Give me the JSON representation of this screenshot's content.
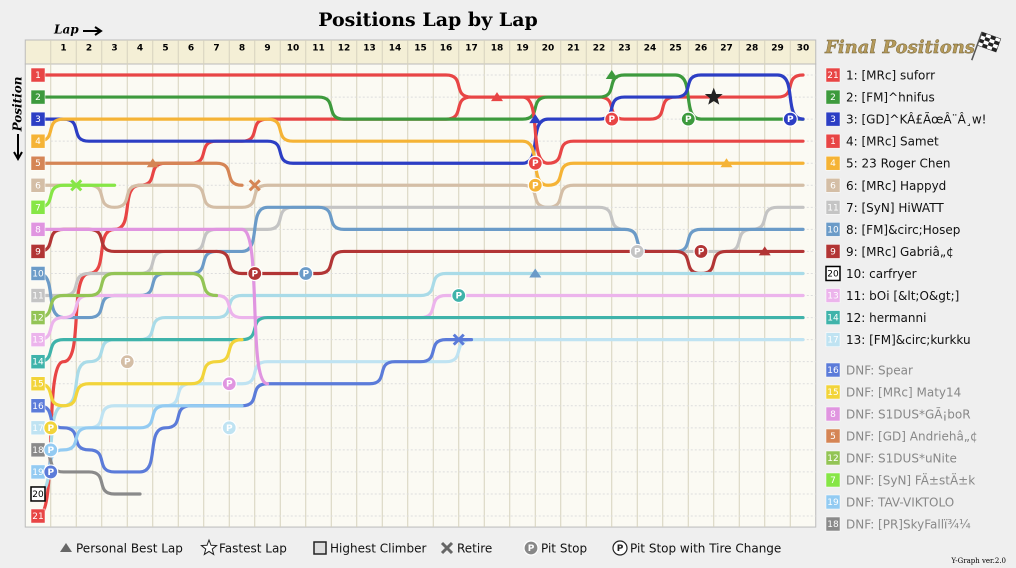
{
  "chart_data": {
    "type": "lapchart",
    "title": "Positions Lap by Lap",
    "x_label": "Lap",
    "y_label": "Position",
    "panel_title": "Final Positions",
    "footer": "Y-Graph ver.2.0",
    "x": [
      0,
      1,
      2,
      3,
      4,
      5,
      6,
      7,
      8,
      9,
      10,
      11,
      12,
      13,
      14,
      15,
      16,
      17,
      18,
      19,
      20,
      21,
      22,
      23,
      24,
      25,
      26,
      27,
      28,
      29,
      30
    ],
    "xlim": [
      -0.5,
      30.5
    ],
    "xticks": [
      1,
      2,
      3,
      4,
      5,
      6,
      7,
      8,
      9,
      10,
      11,
      12,
      13,
      14,
      15,
      16,
      17,
      18,
      19,
      20,
      21,
      22,
      23,
      24,
      25,
      26,
      27,
      28,
      29,
      30
    ],
    "ylim": [
      0.5,
      21.5
    ],
    "yticks": [
      1,
      2,
      3,
      4,
      5,
      6,
      7,
      8,
      9,
      10,
      11,
      12,
      13,
      14,
      15,
      16,
      17,
      18,
      19,
      20,
      21
    ],
    "grid": true,
    "series": [
      {
        "name": "1: [MRc] suforr",
        "color": "#e84545",
        "values": [
          21,
          14,
          10,
          8,
          6,
          5,
          5,
          4,
          4,
          3,
          3,
          3,
          3,
          3,
          3,
          3,
          3,
          2,
          2,
          2,
          2,
          2,
          2,
          3,
          3,
          2,
          2,
          2,
          2,
          2,
          1
        ]
      },
      {
        "name": "2: [FM]^hnifus",
        "color": "#3d9a3d",
        "values": [
          2,
          2,
          2,
          2,
          2,
          2,
          2,
          2,
          2,
          2,
          2,
          2,
          3,
          3,
          3,
          3,
          3,
          3,
          3,
          3,
          2,
          2,
          2,
          1,
          1,
          1,
          3,
          3,
          3,
          3,
          3
        ]
      },
      {
        "name": "3: [GD]^KÂ£ÃœÂ¨Â¸w!",
        "color": "#2c3ec4",
        "values": [
          3,
          3,
          4,
          4,
          4,
          4,
          4,
          4,
          4,
          4,
          5,
          5,
          5,
          5,
          5,
          5,
          5,
          5,
          5,
          5,
          3,
          3,
          3,
          2,
          2,
          2,
          1,
          1,
          1,
          1,
          3
        ]
      },
      {
        "name": "4: [MRc] Samet",
        "color": "#e84545",
        "values": [
          1,
          1,
          1,
          1,
          1,
          1,
          1,
          1,
          1,
          1,
          1,
          1,
          1,
          1,
          1,
          1,
          1,
          2,
          2,
          2,
          5,
          4,
          4,
          4,
          4,
          4,
          4,
          4,
          4,
          4,
          4
        ]
      },
      {
        "name": "5: 23 Roger Chen",
        "color": "#f5b335",
        "values": [
          4,
          3,
          3,
          3,
          3,
          3,
          3,
          3,
          3,
          3,
          4,
          4,
          4,
          4,
          4,
          4,
          4,
          4,
          4,
          4,
          6,
          5,
          5,
          5,
          5,
          5,
          5,
          5,
          5,
          5,
          5
        ]
      },
      {
        "name": "6: [MRc] Happyd",
        "color": "#d4bea6",
        "values": [
          6,
          6,
          6,
          7,
          6,
          6,
          6,
          7,
          7,
          6,
          6,
          6,
          6,
          6,
          6,
          6,
          6,
          6,
          6,
          6,
          7,
          6,
          6,
          6,
          6,
          6,
          6,
          6,
          6,
          6,
          6
        ]
      },
      {
        "name": "7: [SyN] HiWATT",
        "color": "#c4c4c4",
        "values": [
          11,
          11,
          10,
          10,
          10,
          9,
          9,
          8,
          8,
          8,
          7,
          7,
          7,
          7,
          7,
          7,
          7,
          7,
          7,
          7,
          7,
          7,
          7,
          8,
          9,
          9,
          9,
          9,
          8,
          7,
          7
        ]
      },
      {
        "name": "8: [FM]&circ;Hosep",
        "color": "#6b9bc8",
        "values": [
          10,
          12,
          12,
          11,
          11,
          10,
          10,
          9,
          9,
          7,
          7,
          7,
          8,
          8,
          8,
          8,
          8,
          8,
          8,
          8,
          8,
          8,
          8,
          8,
          9,
          9,
          8,
          8,
          8,
          8,
          8
        ]
      },
      {
        "name": "9: [MRc] Gabriâ„¢",
        "color": "#b23535",
        "values": [
          9,
          8,
          8,
          9,
          9,
          9,
          9,
          9,
          10,
          10,
          10,
          10,
          9,
          9,
          9,
          9,
          9,
          9,
          9,
          9,
          9,
          9,
          9,
          9,
          9,
          9,
          10,
          9,
          9,
          9,
          9
        ]
      },
      {
        "name": "10: carfryer",
        "color": "#a9dbe8",
        "highest_climber": true,
        "values": [
          20,
          16,
          14,
          13,
          13,
          12,
          12,
          12,
          11,
          11,
          11,
          11,
          11,
          11,
          11,
          11,
          10,
          10,
          10,
          10,
          10,
          10,
          10,
          10,
          10,
          10,
          10,
          10,
          10,
          10,
          10
        ]
      },
      {
        "name": "11: bOi [&lt;O&gt;]",
        "color": "#ecb4ec",
        "values": [
          13,
          12,
          11,
          11,
          11,
          11,
          11,
          11,
          12,
          12,
          12,
          12,
          12,
          12,
          12,
          12,
          11,
          11,
          11,
          11,
          11,
          11,
          11,
          11,
          11,
          11,
          11,
          11,
          11,
          11,
          11
        ]
      },
      {
        "name": "12: hermanni",
        "color": "#3fb3aa",
        "values": [
          14,
          13,
          13,
          13,
          13,
          13,
          13,
          13,
          13,
          12,
          12,
          12,
          12,
          12,
          12,
          12,
          12,
          12,
          12,
          12,
          12,
          12,
          12,
          12,
          12,
          12,
          12,
          12,
          12,
          12,
          12
        ]
      },
      {
        "name": "13: [FM]&circ;kurkku",
        "color": "#bfe3f2",
        "values": [
          17,
          17,
          17,
          16,
          16,
          16,
          15,
          15,
          15,
          14,
          14,
          14,
          14,
          14,
          14,
          14,
          14,
          13,
          13,
          13,
          13,
          13,
          13,
          13,
          13,
          13,
          13,
          13,
          13,
          13,
          13
        ]
      },
      {
        "name": "DNF: Spear",
        "color": "#5b7bd9",
        "dnf": true,
        "values": [
          16,
          17,
          18,
          19,
          19,
          17,
          16,
          16,
          16,
          15,
          15,
          15,
          15,
          15,
          14,
          14,
          13,
          13,
          null,
          null,
          null,
          null,
          null,
          null,
          null,
          null,
          null,
          null,
          null,
          null,
          null
        ]
      },
      {
        "name": "DNF: [MRc] Maty14",
        "color": "#f2d43a",
        "dnf": true,
        "values": [
          15,
          16,
          15,
          15,
          15,
          15,
          15,
          14,
          13,
          null,
          null,
          null,
          null,
          null,
          null,
          null,
          null,
          null,
          null,
          null,
          null,
          null,
          null,
          null,
          null,
          null,
          null,
          null,
          null,
          null,
          null
        ]
      },
      {
        "name": "DNF: S1DUS*GÃ¡boR",
        "color": "#e095e0",
        "dnf": true,
        "values": [
          8,
          8,
          8,
          8,
          8,
          8,
          8,
          8,
          8,
          15,
          null,
          null,
          null,
          null,
          null,
          null,
          null,
          null,
          null,
          null,
          null,
          null,
          null,
          null,
          null,
          null,
          null,
          null,
          null,
          null,
          null
        ]
      },
      {
        "name": "DNF: [GD] Andriehâ„¢",
        "color": "#d58555",
        "dnf": true,
        "values": [
          5,
          5,
          5,
          5,
          5,
          5,
          5,
          5,
          6,
          null,
          null,
          null,
          null,
          null,
          null,
          null,
          null,
          null,
          null,
          null,
          null,
          null,
          null,
          null,
          null,
          null,
          null,
          null,
          null,
          null,
          null
        ]
      },
      {
        "name": "DNF: S1DUS*uNite",
        "color": "#93c455",
        "dnf": true,
        "values": [
          12,
          11,
          11,
          10,
          10,
          10,
          10,
          11,
          null,
          null,
          null,
          null,
          null,
          null,
          null,
          null,
          null,
          null,
          null,
          null,
          null,
          null,
          null,
          null,
          null,
          null,
          null,
          null,
          null,
          null,
          null
        ]
      },
      {
        "name": "DNF: [SyN] FÄ±stÄ±k",
        "color": "#86e646",
        "dnf": true,
        "values": [
          7,
          6,
          6,
          6,
          null,
          null,
          null,
          null,
          null,
          null,
          null,
          null,
          null,
          null,
          null,
          null,
          null,
          null,
          null,
          null,
          null,
          null,
          null,
          null,
          null,
          null,
          null,
          null,
          null,
          null,
          null
        ]
      },
      {
        "name": "DNF: TAV-VIKTOLO",
        "color": "#93cbf2",
        "dnf": true,
        "values": [
          19,
          18,
          17,
          17,
          17,
          16,
          16,
          16,
          16,
          null,
          null,
          null,
          null,
          null,
          null,
          null,
          null,
          null,
          null,
          null,
          null,
          null,
          null,
          null,
          null,
          null,
          null,
          null,
          null,
          null,
          null
        ]
      },
      {
        "name": "DNF: [PR]SkyFallï¾¼",
        "color": "#8a8a8a",
        "dnf": true,
        "values": [
          18,
          19,
          19,
          20,
          20,
          null,
          null,
          null,
          null,
          null,
          null,
          null,
          null,
          null,
          null,
          null,
          null,
          null,
          null,
          null,
          null,
          null,
          null,
          null,
          null,
          null,
          null,
          null,
          null,
          null,
          null
        ]
      }
    ],
    "events": [
      {
        "series": 3,
        "type": "pit",
        "x": 19.5,
        "y": 5
      },
      {
        "series": 4,
        "type": "pit",
        "x": 19.5,
        "y": 6
      },
      {
        "series": 0,
        "type": "pit",
        "x": 22.5,
        "y": 3
      },
      {
        "series": 1,
        "type": "pit",
        "x": 25.5,
        "y": 3
      },
      {
        "series": 2,
        "type": "pit",
        "x": 29.5,
        "y": 3
      },
      {
        "series": 6,
        "type": "pit",
        "x": 23.5,
        "y": 9
      },
      {
        "series": 8,
        "type": "pit",
        "x": 26,
        "y": 9
      },
      {
        "series": 8,
        "type": "pit",
        "x": 8.5,
        "y": 10
      },
      {
        "series": 7,
        "type": "pit",
        "x": 10.5,
        "y": 10
      },
      {
        "series": 11,
        "type": "pit",
        "x": 16.5,
        "y": 11
      },
      {
        "series": 14,
        "type": "pit",
        "x": 0.5,
        "y": 17
      },
      {
        "series": 19,
        "type": "pit",
        "x": 0.5,
        "y": 18
      },
      {
        "series": 13,
        "type": "pit",
        "x": 0.5,
        "y": 19
      },
      {
        "series": 15,
        "type": "pit",
        "x": 7.5,
        "y": 15
      },
      {
        "series": 5,
        "type": "pit",
        "x": 3.5,
        "y": 14
      },
      {
        "series": 12,
        "type": "pit",
        "x": 7.5,
        "y": 17
      },
      {
        "series": 0,
        "type": "best",
        "x": 18,
        "y": 2
      },
      {
        "series": 1,
        "type": "best",
        "x": 22.5,
        "y": 1
      },
      {
        "series": 2,
        "type": "best",
        "x": 19.5,
        "y": 3
      },
      {
        "series": 4,
        "type": "best",
        "x": 27,
        "y": 5
      },
      {
        "series": 16,
        "type": "best",
        "x": 4.5,
        "y": 5
      },
      {
        "series": 8,
        "type": "best",
        "x": 28.5,
        "y": 9
      },
      {
        "series": 7,
        "type": "best",
        "x": 19.5,
        "y": 10
      },
      {
        "series": 0,
        "type": "fastest",
        "x": 26.5,
        "y": 2
      },
      {
        "series": 18,
        "type": "retire",
        "x": 1.5,
        "y": 6
      },
      {
        "series": 16,
        "type": "retire",
        "x": 8.5,
        "y": 6
      },
      {
        "series": 13,
        "type": "retire",
        "x": 16.5,
        "y": 13
      }
    ],
    "legend": [
      {
        "marker": "best",
        "label": "Personal Best Lap"
      },
      {
        "marker": "fastest",
        "label": "Fastest Lap"
      },
      {
        "marker": "climber",
        "label": "Highest Climber"
      },
      {
        "marker": "retire",
        "label": "Retire"
      },
      {
        "marker": "pit",
        "label": "Pit Stop",
        "symbol": "P"
      },
      {
        "marker": "pit_tire",
        "label": "Pit Stop with Tire Change",
        "symbol": "P"
      }
    ]
  }
}
